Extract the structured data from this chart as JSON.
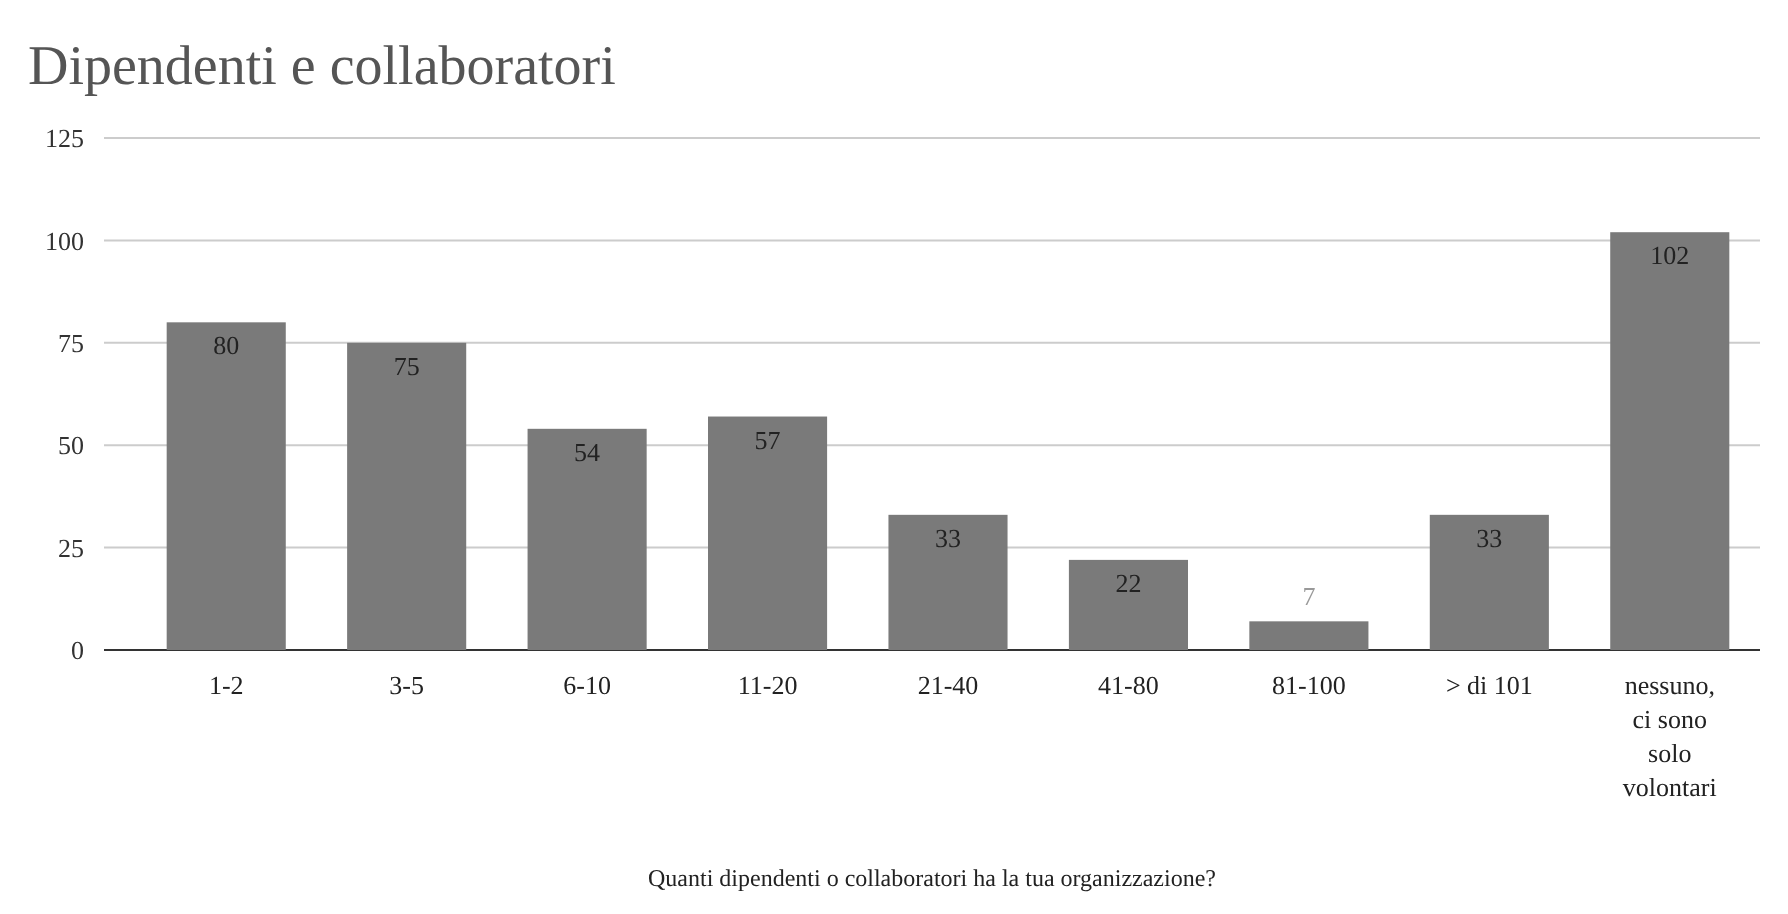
{
  "chart_data": {
    "type": "bar",
    "title": "Dipendenti e collaboratori",
    "xlabel": "Quanti dipendenti o collaboratori ha la tua organizzazione?",
    "categories": [
      "1-2",
      "3-5",
      "6-10",
      "11-20",
      "21-40",
      "41-80",
      "81-100",
      "> di 101",
      "nessuno, ci sono solo volontari"
    ],
    "values": [
      80,
      75,
      54,
      57,
      33,
      22,
      7,
      33,
      102
    ],
    "color": "#7a7a7a",
    "ylim": [
      0,
      125
    ],
    "yticks": [
      0,
      25,
      50,
      75,
      100,
      125
    ],
    "grid": "y",
    "data_labels": true
  }
}
